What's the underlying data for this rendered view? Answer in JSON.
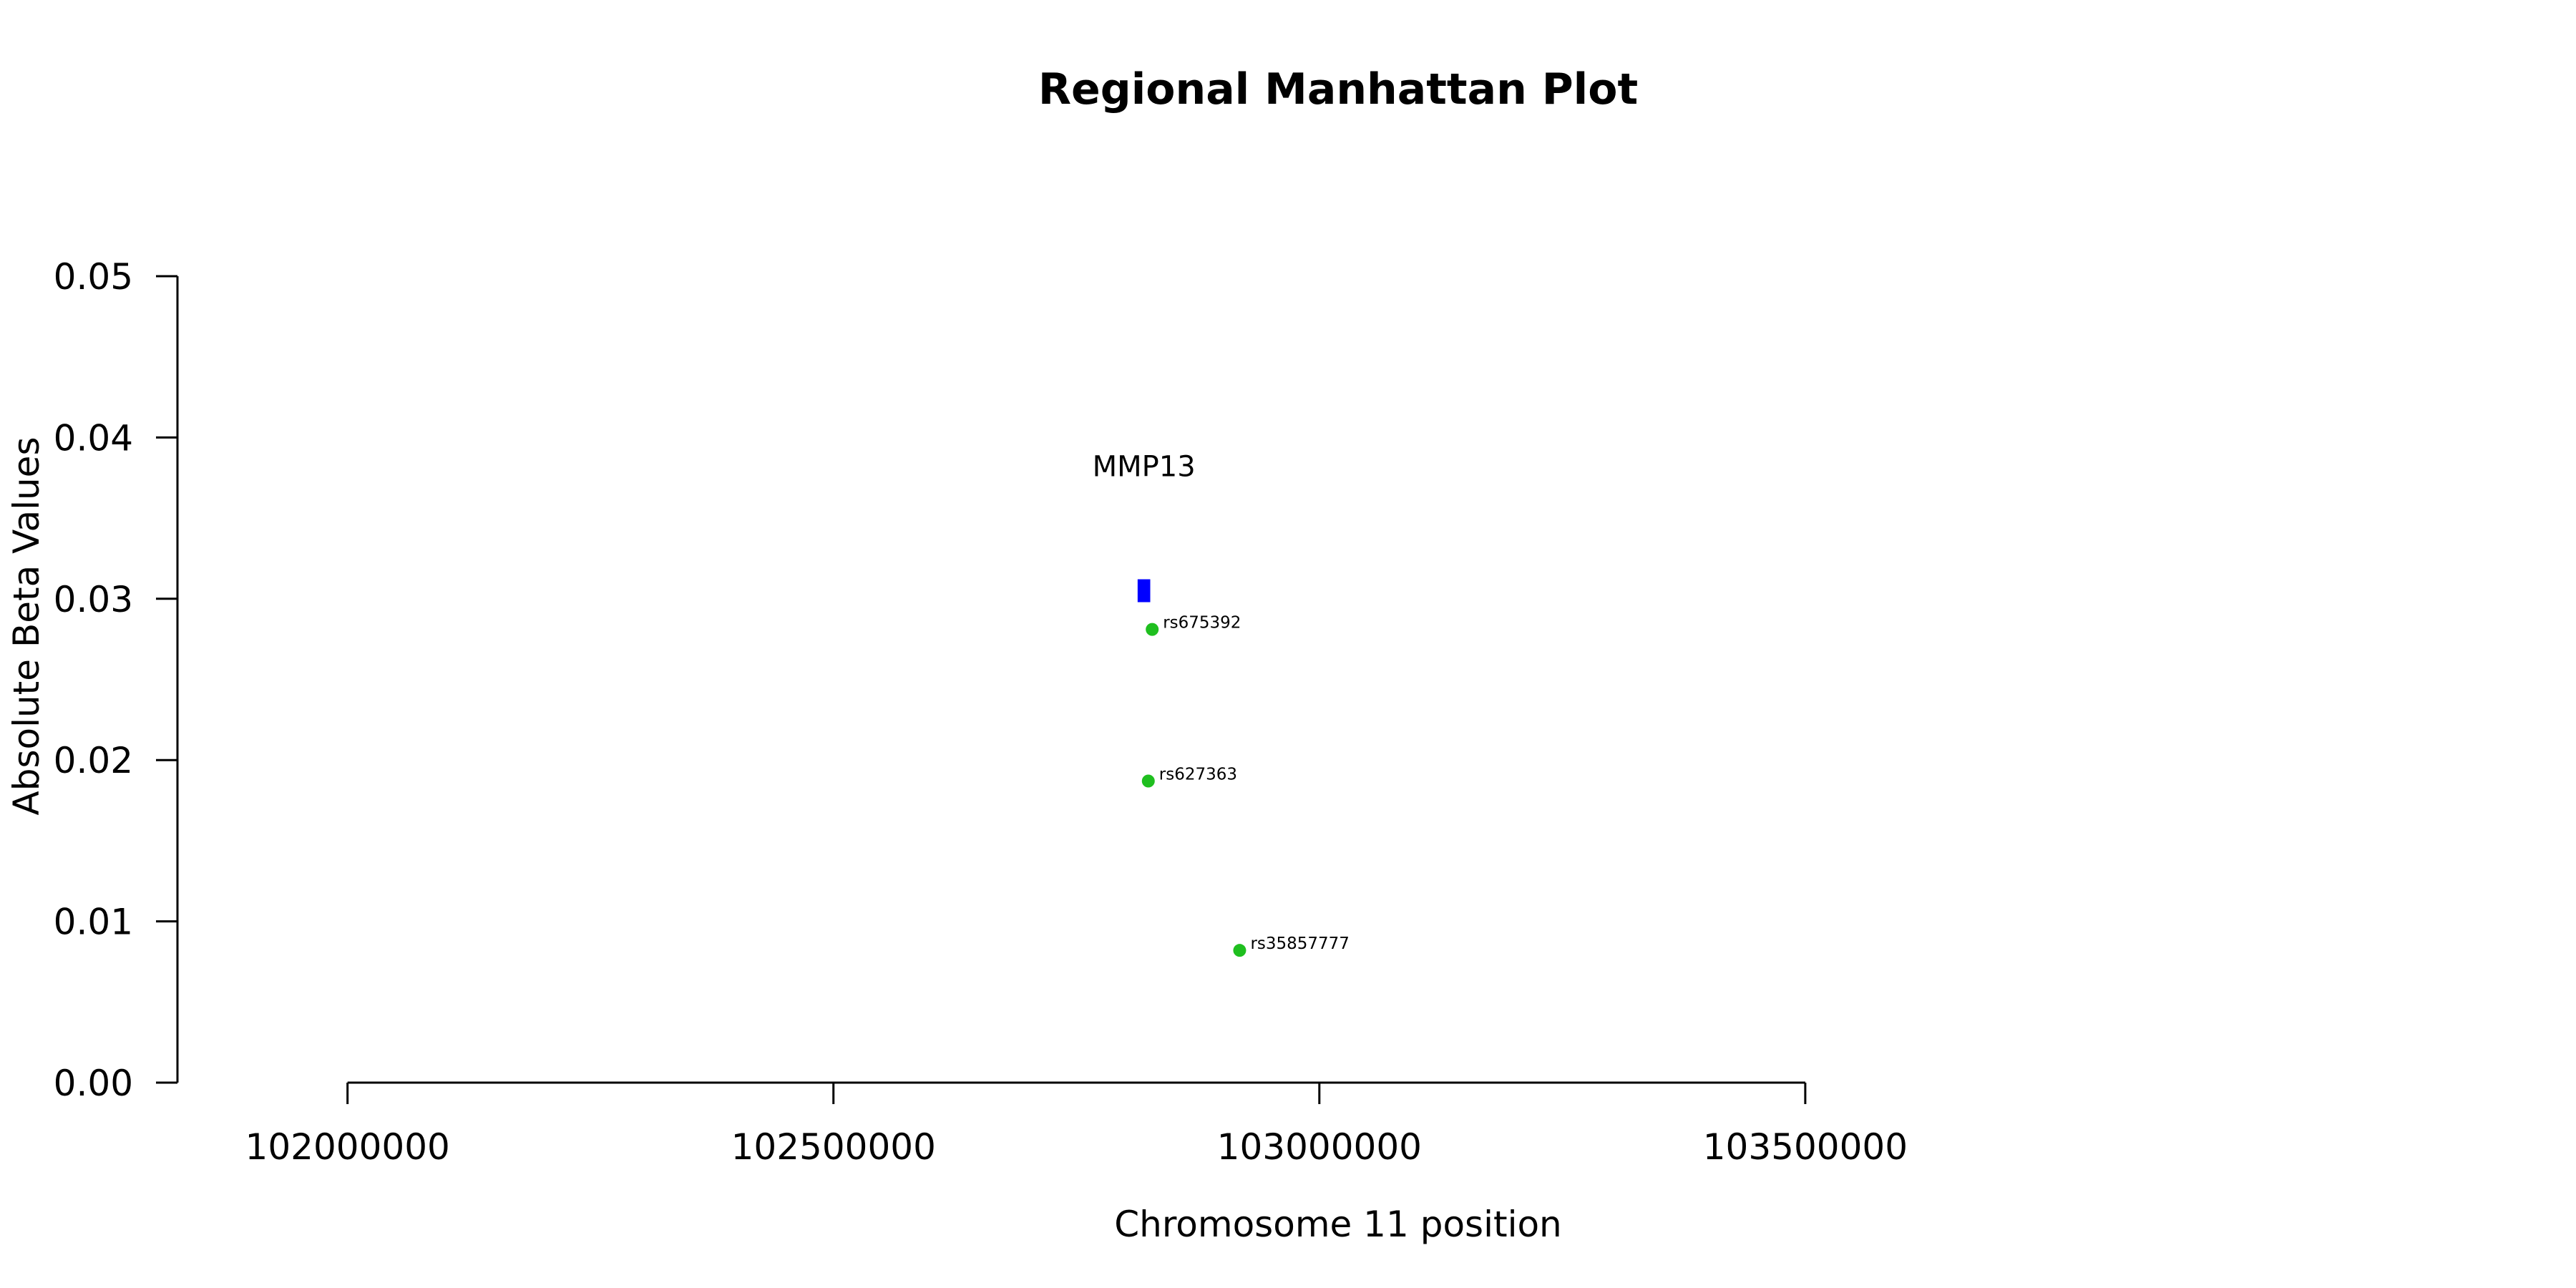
{
  "chart_data": {
    "type": "scatter",
    "title": "Regional Manhattan Plot",
    "xlabel": "Chromosome 11 position",
    "ylabel": "Absolute Beta Values",
    "xlim": [
      101825000,
      103975000
    ],
    "ylim": [
      0,
      0.05
    ],
    "x_ticks": [
      102000000,
      102500000,
      103000000,
      103500000
    ],
    "x_tick_labels": [
      "102000000",
      "102500000",
      "103000000",
      "103500000"
    ],
    "y_ticks": [
      0,
      0.01,
      0.02,
      0.03,
      0.04,
      0.05
    ],
    "y_tick_labels": [
      "0.00",
      "0.01",
      "0.02",
      "0.03",
      "0.04",
      "0.05"
    ],
    "grid": false,
    "series": [
      {
        "color": "#1fbf1f",
        "points": [
          {
            "label": "rs675392",
            "x": 102828000,
            "y": 0.0281
          },
          {
            "label": "rs627363",
            "x": 102824000,
            "y": 0.0187
          },
          {
            "label": "rs35857777",
            "x": 102918000,
            "y": 0.0082
          }
        ]
      }
    ],
    "genes": [
      {
        "name": "MMP13",
        "start": 102813000,
        "end": 102826000,
        "y": 0.0305,
        "color": "#0000ff"
      }
    ]
  }
}
